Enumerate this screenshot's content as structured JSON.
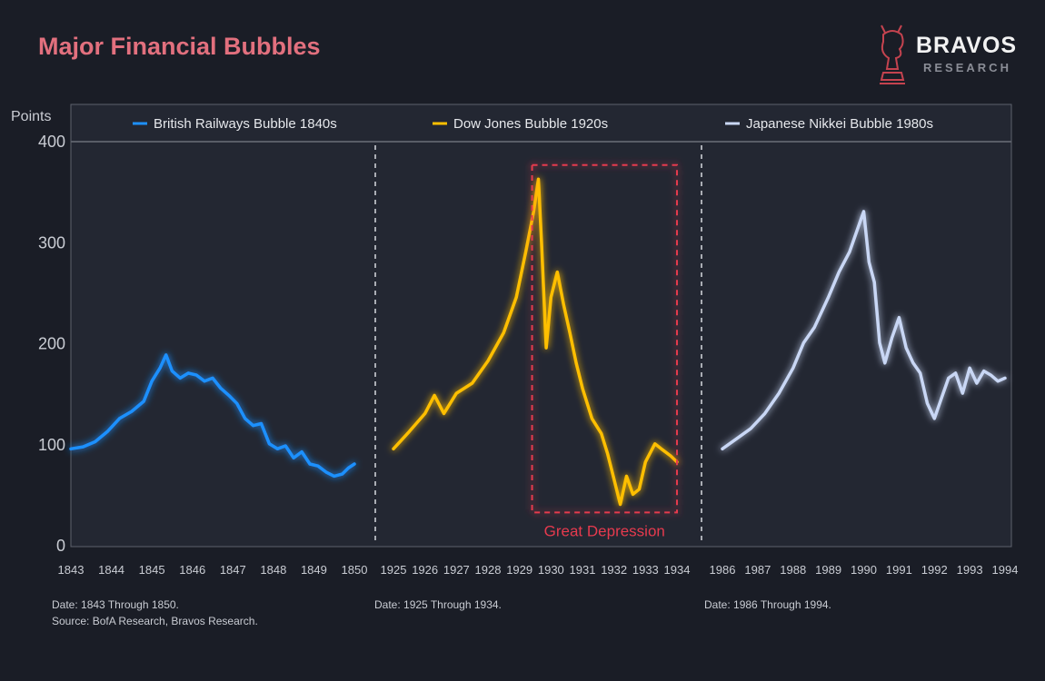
{
  "title": "Major Financial Bubbles",
  "brand": {
    "name": "BRAVOS",
    "sub": "RESEARCH",
    "icon": "knight-chess-icon",
    "icon_color": "#c4434f"
  },
  "colors": {
    "background": "#1a1d26",
    "panel": "#232732",
    "title": "#e2707e",
    "highlight": "#e63a4e"
  },
  "chart_data": {
    "type": "line",
    "ylabel": "Points",
    "ylim": [
      0,
      400
    ],
    "yticks": [
      0,
      100,
      200,
      300,
      400
    ],
    "grid": false,
    "legend_position": "top",
    "panels": [
      {
        "series_name": "British Railways Bubble 1840s",
        "color": "#1e90ff",
        "xlim": [
          1843,
          1850
        ],
        "xticks": [
          "1843",
          "1844",
          "1845",
          "1846",
          "1847",
          "1848",
          "1849",
          "1850"
        ],
        "x": [
          1843.0,
          1843.3,
          1843.6,
          1843.9,
          1844.2,
          1844.5,
          1844.8,
          1845.0,
          1845.2,
          1845.35,
          1845.5,
          1845.7,
          1845.9,
          1846.1,
          1846.3,
          1846.5,
          1846.7,
          1846.9,
          1847.1,
          1847.3,
          1847.5,
          1847.7,
          1847.9,
          1848.1,
          1848.3,
          1848.5,
          1848.7,
          1848.9,
          1849.1,
          1849.3,
          1849.5,
          1849.7,
          1849.85,
          1850.0
        ],
        "y": [
          95,
          97,
          102,
          112,
          125,
          132,
          142,
          162,
          175,
          188,
          172,
          165,
          170,
          168,
          162,
          165,
          155,
          148,
          140,
          125,
          118,
          120,
          100,
          95,
          98,
          86,
          92,
          80,
          78,
          72,
          68,
          70,
          76,
          80
        ]
      },
      {
        "series_name": "Dow Jones Bubble 1920s",
        "color": "#ffbf00",
        "xlim": [
          1925,
          1934
        ],
        "xticks": [
          "1925",
          "1926",
          "1927",
          "1928",
          "1929",
          "1930",
          "1931",
          "1932",
          "1933",
          "1934"
        ],
        "x": [
          1925.0,
          1925.5,
          1926.0,
          1926.3,
          1926.6,
          1927.0,
          1927.5,
          1928.0,
          1928.5,
          1928.9,
          1929.2,
          1929.45,
          1929.6,
          1929.7,
          1929.85,
          1930.0,
          1930.2,
          1930.4,
          1930.6,
          1930.8,
          1931.0,
          1931.3,
          1931.6,
          1931.8,
          1932.0,
          1932.2,
          1932.4,
          1932.6,
          1932.8,
          1933.0,
          1933.3,
          1933.5,
          1933.8,
          1934.0
        ],
        "y": [
          95,
          112,
          130,
          148,
          130,
          150,
          160,
          182,
          210,
          245,
          290,
          330,
          362,
          300,
          195,
          245,
          270,
          238,
          210,
          180,
          155,
          125,
          110,
          90,
          65,
          40,
          68,
          50,
          55,
          82,
          100,
          95,
          88,
          82
        ]
      },
      {
        "series_name": "Japanese Nikkei Bubble 1980s",
        "color": "#c9d7f5",
        "xlim": [
          1986,
          1994
        ],
        "xticks": [
          "1986",
          "1987",
          "1988",
          "1989",
          "1990",
          "1991",
          "1992",
          "1993",
          "1994"
        ],
        "x": [
          1986.0,
          1986.4,
          1986.8,
          1987.2,
          1987.6,
          1988.0,
          1988.3,
          1988.6,
          1989.0,
          1989.3,
          1989.6,
          1989.9,
          1990.0,
          1990.15,
          1990.3,
          1990.45,
          1990.6,
          1990.8,
          1991.0,
          1991.2,
          1991.4,
          1991.6,
          1991.8,
          1992.0,
          1992.2,
          1992.4,
          1992.6,
          1992.8,
          1993.0,
          1993.2,
          1993.4,
          1993.6,
          1993.8,
          1994.0
        ],
        "y": [
          95,
          105,
          115,
          130,
          150,
          175,
          200,
          215,
          245,
          270,
          290,
          320,
          330,
          280,
          260,
          200,
          180,
          205,
          225,
          195,
          180,
          170,
          140,
          125,
          145,
          165,
          170,
          150,
          175,
          160,
          172,
          168,
          162,
          165
        ]
      }
    ],
    "annotations": [
      {
        "panel": 1,
        "label": "Great Depression",
        "x_range": [
          1929.4,
          1934.0
        ],
        "y_range": [
          32,
          376
        ]
      }
    ]
  },
  "notes": [
    "Date: 1843 Through 1850.",
    "Source: BofA Research, Bravos Research.",
    "Date: 1925 Through 1934.",
    "Date: 1986 Through 1994."
  ]
}
